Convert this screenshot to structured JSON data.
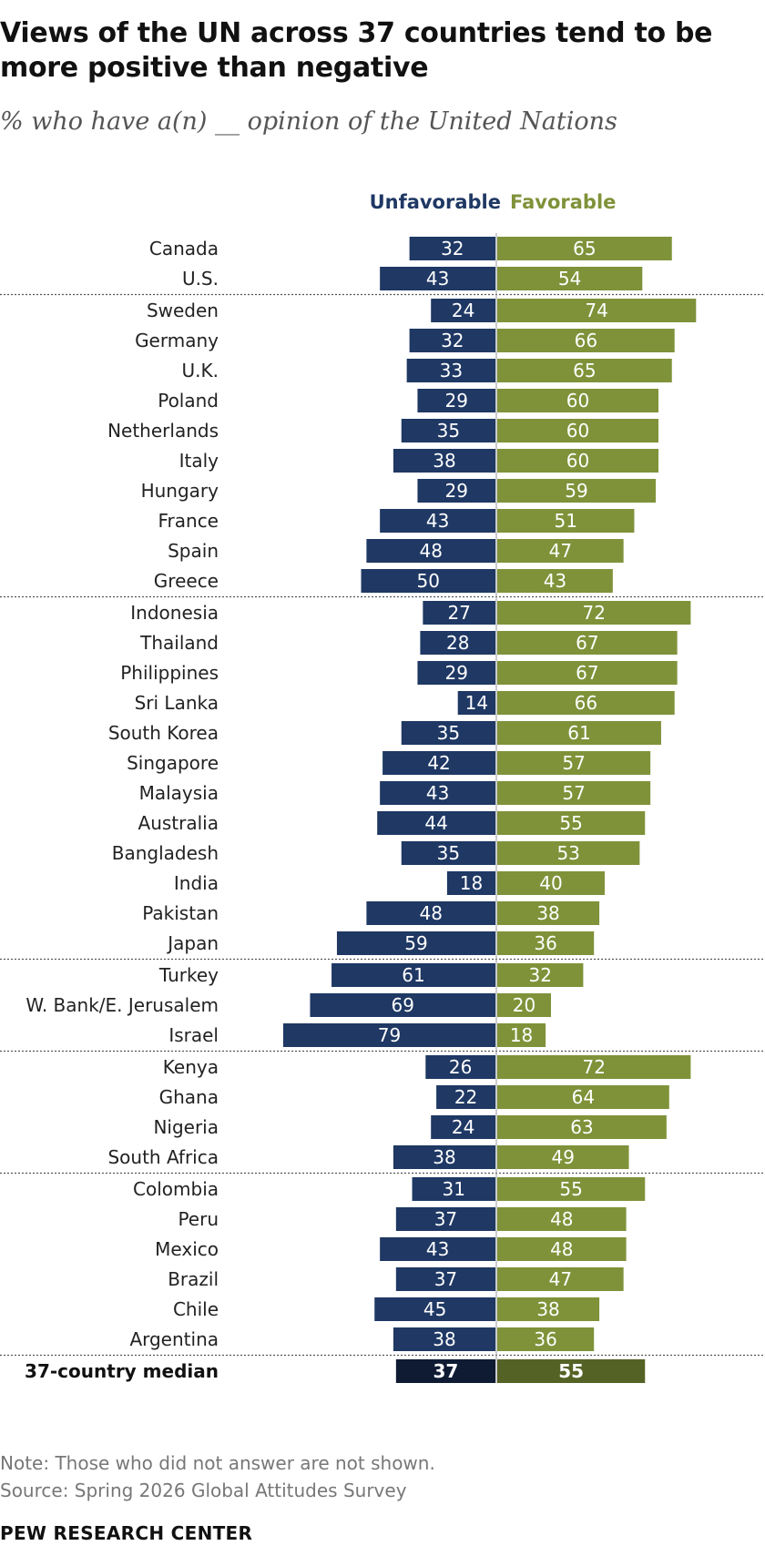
{
  "title": "Views of the UN across 37 countries tend to be more positive than negative",
  "subtitle": "% who have a(n) __ opinion of the United Nations",
  "legend": {
    "unfavorable": "Unfavorable",
    "favorable": "Favorable"
  },
  "note": "Note: Those who did not answer are not shown.",
  "source": "Source: Spring 2026 Global Attitudes Survey",
  "brand": "PEW RESEARCH CENTER",
  "colors": {
    "unfavorable": "#1f3864",
    "favorable": "#7f9239",
    "median_unfavorable": "#0e1b33",
    "median_favorable": "#556225"
  },
  "chart_data": {
    "type": "bar",
    "orientation": "horizontal-diverging",
    "series": [
      {
        "name": "Unfavorable",
        "values": [
          32,
          43,
          24,
          32,
          33,
          29,
          35,
          38,
          29,
          43,
          48,
          50,
          27,
          28,
          29,
          14,
          35,
          42,
          43,
          44,
          35,
          18,
          48,
          59,
          61,
          69,
          79,
          26,
          22,
          24,
          38,
          31,
          37,
          43,
          37,
          45,
          38
        ]
      },
      {
        "name": "Favorable",
        "values": [
          65,
          54,
          74,
          66,
          65,
          60,
          60,
          60,
          59,
          51,
          47,
          43,
          72,
          67,
          67,
          66,
          61,
          57,
          57,
          55,
          53,
          40,
          38,
          36,
          32,
          20,
          18,
          72,
          64,
          63,
          49,
          55,
          48,
          48,
          47,
          38,
          36
        ]
      }
    ],
    "categories": [
      "Canada",
      "U.S.",
      "Sweden",
      "Germany",
      "U.K.",
      "Poland",
      "Netherlands",
      "Italy",
      "Hungary",
      "France",
      "Spain",
      "Greece",
      "Indonesia",
      "Thailand",
      "Philippines",
      "Sri Lanka",
      "South Korea",
      "Singapore",
      "Malaysia",
      "Australia",
      "Bangladesh",
      "India",
      "Pakistan",
      "Japan",
      "Turkey",
      "W. Bank/E. Jerusalem",
      "Israel",
      "Kenya",
      "Ghana",
      "Nigeria",
      "South Africa",
      "Colombia",
      "Peru",
      "Mexico",
      "Brazil",
      "Chile",
      "Argentina"
    ],
    "group_breaks_after": [
      1,
      11,
      23,
      26,
      30,
      36
    ],
    "median": {
      "label": "37-country median",
      "unfavorable": 37,
      "favorable": 55
    }
  }
}
